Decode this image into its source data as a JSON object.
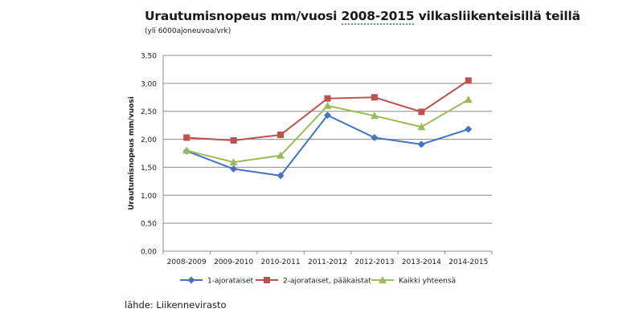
{
  "title_parts": {
    "a": "Urautumisnopeus mm/vuosi ",
    "b": "2008-2015",
    "c": " vilkasliikenteisillä  teillä"
  },
  "subtitle": "(yli 6000ajoneuvoa/vrk)",
  "source": "lähde: Liikennevirasto",
  "chart_data": {
    "type": "line",
    "title": "Urautumisnopeus mm/vuosi 2008-2015 vilkasliikenteisillä  teillä",
    "subtitle": "(yli 6000ajoneuvoa/vrk)",
    "xlabel": "",
    "ylabel": "Urautumisnopeus mm/vuosi",
    "categories": [
      "2008-2009",
      "2009-2010",
      "2010-2011",
      "2011-2012",
      "2012-2013",
      "2013-2014",
      "2014-2015"
    ],
    "ylim": [
      0,
      3.5
    ],
    "yticks": [
      "0,00",
      "0,50",
      "1,00",
      "1,50",
      "2,00",
      "2,50",
      "3,00",
      "3,50"
    ],
    "grid": true,
    "legend_position": "bottom",
    "series": [
      {
        "name": "1-ajorataiset",
        "color": "#4472C4",
        "marker": "diamond",
        "values": [
          1.79,
          1.47,
          1.35,
          2.43,
          2.03,
          1.91,
          2.18
        ]
      },
      {
        "name": "2-ajorataiset, pääkaistat",
        "color": "#C0504D",
        "marker": "square",
        "values": [
          2.03,
          1.98,
          2.08,
          2.73,
          2.75,
          2.49,
          3.05
        ]
      },
      {
        "name": "Kaikki yhteensä",
        "color": "#9BBB59",
        "marker": "triangle",
        "values": [
          1.8,
          1.59,
          1.71,
          2.6,
          2.42,
          2.22,
          2.71
        ]
      }
    ]
  }
}
